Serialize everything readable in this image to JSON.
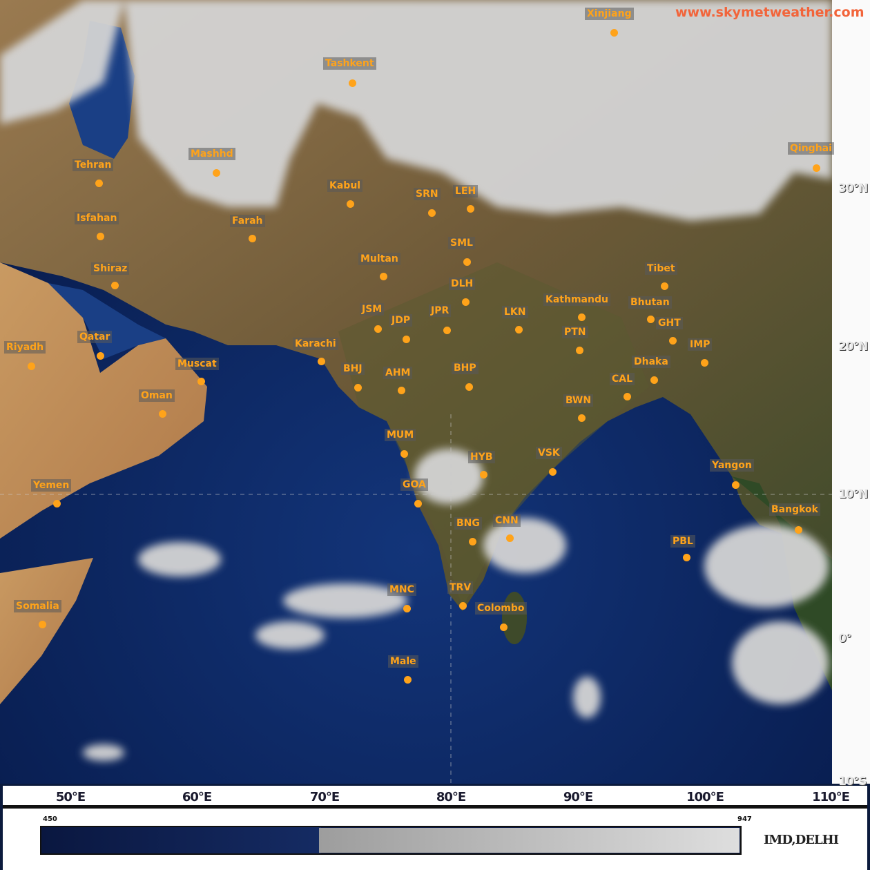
{
  "watermark": "www.skymetweather.com",
  "credit": "IMD,DELHI",
  "latitude_labels": [
    "30°N",
    "20°N",
    "10°N",
    "0°",
    "10°S"
  ],
  "longitude_labels": [
    "50°E",
    "60°E",
    "70°E",
    "80°E",
    "90°E",
    "100°E",
    "110°E"
  ],
  "legend": {
    "min_label": "450",
    "max_label": "947"
  },
  "colors": {
    "city_marker": "#ffa31a",
    "watermark": "#f2643a",
    "ocean": "#0e2a66",
    "land": "#8a6d45",
    "cloud": "#d8d8d8"
  },
  "cities": [
    "Xinjiang",
    "Tashkent",
    "Qinghai",
    "Mashhd",
    "Tehran",
    "Kabul",
    "SRN",
    "LEH",
    "Isfahan",
    "Farah",
    "SML",
    "Multan",
    "Tibet",
    "Shiraz",
    "DLH",
    "Kathmandu",
    "Bhutan",
    "JSM",
    "JPR",
    "LKN",
    "GHT",
    "JDP",
    "PTN",
    "Qatar",
    "Karachi",
    "Riyadh",
    "IMP",
    "Muscat",
    "Dhaka",
    "BHJ",
    "AHM",
    "BHP",
    "CAL",
    "Oman",
    "BWN",
    "MUM",
    "HYB",
    "VSK",
    "Yangon",
    "GOA",
    "Yemen",
    "Bangkok",
    "CNN",
    "BNG",
    "PBL",
    "MNC",
    "TRV",
    "Colombo",
    "Somalia",
    "Male"
  ]
}
